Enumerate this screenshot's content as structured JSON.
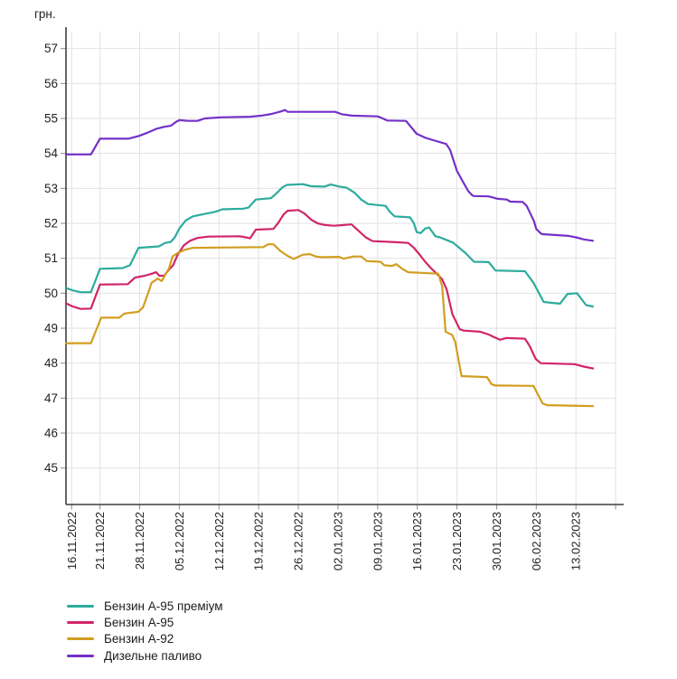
{
  "chart_data": {
    "type": "line",
    "unit_label": "грн.",
    "x_axis": {
      "tick_labels": [
        "16.11.2022",
        "21.11.2022",
        "28.11.2022",
        "05.12.2022",
        "12.12.2022",
        "19.12.2022",
        "26.12.2022",
        "02.01.2023",
        "09.01.2023",
        "16.01.2023",
        "23.01.2023",
        "30.01.2023",
        "06.02.2023",
        "13.02.2023"
      ],
      "tick_days": [
        1,
        6,
        13,
        20,
        27,
        34,
        41,
        48,
        55,
        62,
        69,
        76,
        83,
        90
      ],
      "domain_days": [
        0,
        93
      ],
      "start_date": "15.11.2022",
      "end_date": "16.02.2023"
    },
    "y_axis": {
      "ticks": [
        45,
        46,
        47,
        48,
        49,
        50,
        51,
        52,
        53,
        54,
        55,
        56,
        57
      ],
      "ylim": [
        43.95,
        57.5
      ]
    },
    "grid": true,
    "legend_position": "bottom-left",
    "colors": {
      "grid": "#e2e2e2",
      "axis": "#3f3f3f",
      "tick": "#8a8a8a",
      "text": "#222222"
    },
    "series": [
      {
        "name": "Бензин А-95 преміум",
        "color": "#2CAC9E",
        "points": [
          [
            0,
            50.15
          ],
          [
            1.2,
            50.08
          ],
          [
            2.6,
            50.03
          ],
          [
            4.4,
            50.03
          ],
          [
            6,
            50.7
          ],
          [
            10,
            50.72
          ],
          [
            11.3,
            50.8
          ],
          [
            12.8,
            51.3
          ],
          [
            16.4,
            51.34
          ],
          [
            17.5,
            51.44
          ],
          [
            18.5,
            51.47
          ],
          [
            19.2,
            51.6
          ],
          [
            20,
            51.85
          ],
          [
            21.1,
            52.08
          ],
          [
            22.4,
            52.2
          ],
          [
            24.8,
            52.28
          ],
          [
            26.4,
            52.33
          ],
          [
            27.6,
            52.4
          ],
          [
            31.3,
            52.42
          ],
          [
            32.2,
            52.45
          ],
          [
            33.5,
            52.68
          ],
          [
            36.2,
            52.72
          ],
          [
            37.1,
            52.85
          ],
          [
            38.2,
            53.03
          ],
          [
            39,
            53.1
          ],
          [
            41.8,
            53.12
          ],
          [
            43.3,
            53.06
          ],
          [
            45.6,
            53.05
          ],
          [
            46.7,
            53.11
          ],
          [
            48.3,
            53.05
          ],
          [
            49.5,
            53.02
          ],
          [
            50.9,
            52.88
          ],
          [
            52.1,
            52.68
          ],
          [
            53.3,
            52.55
          ],
          [
            56.4,
            52.5
          ],
          [
            57.2,
            52.32
          ],
          [
            58,
            52.2
          ],
          [
            60.7,
            52.17
          ],
          [
            61.4,
            52.0
          ],
          [
            61.9,
            51.75
          ],
          [
            62.6,
            51.72
          ],
          [
            63.4,
            51.85
          ],
          [
            64.1,
            51.88
          ],
          [
            65.2,
            51.63
          ],
          [
            66,
            51.6
          ],
          [
            68.3,
            51.45
          ],
          [
            70.5,
            51.15
          ],
          [
            72,
            50.9
          ],
          [
            74.6,
            50.89
          ],
          [
            75.8,
            50.65
          ],
          [
            81,
            50.63
          ],
          [
            82.5,
            50.3
          ],
          [
            84.3,
            49.75
          ],
          [
            87.2,
            49.7
          ],
          [
            88.5,
            49.98
          ],
          [
            90.2,
            50.0
          ],
          [
            91.8,
            49.66
          ],
          [
            93,
            49.62
          ]
        ]
      },
      {
        "name": "Бензин А-95",
        "color": "#D12568",
        "points": [
          [
            0,
            49.71
          ],
          [
            1.2,
            49.62
          ],
          [
            2.6,
            49.55
          ],
          [
            4.4,
            49.56
          ],
          [
            6,
            50.25
          ],
          [
            10.9,
            50.26
          ],
          [
            12.2,
            50.45
          ],
          [
            13.9,
            50.5
          ],
          [
            15,
            50.55
          ],
          [
            15.9,
            50.6
          ],
          [
            16.5,
            50.5
          ],
          [
            17.3,
            50.5
          ],
          [
            18.2,
            50.68
          ],
          [
            18.9,
            50.8
          ],
          [
            19.7,
            51.1
          ],
          [
            20.8,
            51.37
          ],
          [
            21.9,
            51.5
          ],
          [
            23.2,
            51.58
          ],
          [
            25.1,
            51.62
          ],
          [
            30.7,
            51.63
          ],
          [
            31.7,
            51.6
          ],
          [
            32.5,
            51.57
          ],
          [
            33.5,
            51.82
          ],
          [
            36.6,
            51.84
          ],
          [
            37.4,
            52.0
          ],
          [
            38.4,
            52.25
          ],
          [
            39.1,
            52.36
          ],
          [
            41,
            52.38
          ],
          [
            42.1,
            52.28
          ],
          [
            43.3,
            52.1
          ],
          [
            44.4,
            52.0
          ],
          [
            45.7,
            51.95
          ],
          [
            47.3,
            51.93
          ],
          [
            50.4,
            51.97
          ],
          [
            51.2,
            51.85
          ],
          [
            52.9,
            51.6
          ],
          [
            54.1,
            51.49
          ],
          [
            58.3,
            51.46
          ],
          [
            60.4,
            51.44
          ],
          [
            61.4,
            51.3
          ],
          [
            62.2,
            51.15
          ],
          [
            63.4,
            50.9
          ],
          [
            64.4,
            50.72
          ],
          [
            65.5,
            50.55
          ],
          [
            66.4,
            50.4
          ],
          [
            67.2,
            50.1
          ],
          [
            68.2,
            49.4
          ],
          [
            69.5,
            48.97
          ],
          [
            70.2,
            48.93
          ],
          [
            73.1,
            48.9
          ],
          [
            74.6,
            48.82
          ],
          [
            75.5,
            48.75
          ],
          [
            76.6,
            48.67
          ],
          [
            77.7,
            48.72
          ],
          [
            81,
            48.7
          ],
          [
            81.8,
            48.5
          ],
          [
            82.9,
            48.12
          ],
          [
            83.8,
            48.0
          ],
          [
            89.8,
            47.97
          ],
          [
            91.4,
            47.9
          ],
          [
            93,
            47.85
          ]
        ]
      },
      {
        "name": "Бензин А-92",
        "color": "#D29E1F",
        "points": [
          [
            0,
            48.57
          ],
          [
            4.4,
            48.57
          ],
          [
            6.2,
            49.3
          ],
          [
            9.4,
            49.3
          ],
          [
            10.3,
            49.42
          ],
          [
            12.8,
            49.47
          ],
          [
            13.6,
            49.6
          ],
          [
            14.7,
            50.1
          ],
          [
            15.1,
            50.3
          ],
          [
            16.2,
            50.42
          ],
          [
            16.9,
            50.35
          ],
          [
            17.6,
            50.55
          ],
          [
            18.2,
            50.72
          ],
          [
            18.8,
            51.05
          ],
          [
            19.7,
            51.15
          ],
          [
            21.1,
            51.25
          ],
          [
            22.4,
            51.3
          ],
          [
            34.8,
            51.32
          ],
          [
            35.7,
            51.4
          ],
          [
            36.6,
            51.4
          ],
          [
            37.9,
            51.2
          ],
          [
            39.1,
            51.07
          ],
          [
            40.2,
            50.98
          ],
          [
            41.8,
            51.1
          ],
          [
            43,
            51.12
          ],
          [
            44.1,
            51.05
          ],
          [
            45.2,
            51.03
          ],
          [
            48.2,
            51.04
          ],
          [
            49,
            50.99
          ],
          [
            50.7,
            51.05
          ],
          [
            52.1,
            51.05
          ],
          [
            53.1,
            50.92
          ],
          [
            55.5,
            50.9
          ],
          [
            56.2,
            50.8
          ],
          [
            57.5,
            50.78
          ],
          [
            58.3,
            50.83
          ],
          [
            59.5,
            50.68
          ],
          [
            60.4,
            50.6
          ],
          [
            65.7,
            50.56
          ],
          [
            66.4,
            50.2
          ],
          [
            67,
            48.9
          ],
          [
            68.2,
            48.8
          ],
          [
            68.7,
            48.6
          ],
          [
            69.8,
            47.63
          ],
          [
            74.3,
            47.6
          ],
          [
            75.1,
            47.4
          ],
          [
            75.8,
            47.36
          ],
          [
            82.5,
            47.35
          ],
          [
            83.3,
            47.1
          ],
          [
            84.1,
            46.85
          ],
          [
            84.9,
            46.8
          ],
          [
            93,
            46.77
          ]
        ]
      },
      {
        "name": "Дизельне паливо",
        "color": "#7430C9",
        "points": [
          [
            0,
            53.97
          ],
          [
            4.4,
            53.97
          ],
          [
            6,
            54.42
          ],
          [
            11,
            54.42
          ],
          [
            12.9,
            54.5
          ],
          [
            14.2,
            54.58
          ],
          [
            15.9,
            54.7
          ],
          [
            17.3,
            54.76
          ],
          [
            18.5,
            54.79
          ],
          [
            19.4,
            54.9
          ],
          [
            20,
            54.95
          ],
          [
            21.6,
            54.93
          ],
          [
            23.2,
            54.93
          ],
          [
            24.5,
            55.0
          ],
          [
            27.2,
            55.03
          ],
          [
            32.5,
            55.05
          ],
          [
            34.5,
            55.08
          ],
          [
            36.3,
            55.13
          ],
          [
            37.9,
            55.2
          ],
          [
            38.7,
            55.24
          ],
          [
            39.1,
            55.19
          ],
          [
            47.5,
            55.19
          ],
          [
            48.7,
            55.12
          ],
          [
            50.4,
            55.08
          ],
          [
            55,
            55.06
          ],
          [
            55.9,
            55.0
          ],
          [
            56.7,
            54.94
          ],
          [
            60,
            54.93
          ],
          [
            61.9,
            54.56
          ],
          [
            63.4,
            54.45
          ],
          [
            64.8,
            54.38
          ],
          [
            67.1,
            54.27
          ],
          [
            67.8,
            54.1
          ],
          [
            69,
            53.5
          ],
          [
            70.1,
            53.18
          ],
          [
            71,
            52.92
          ],
          [
            71.7,
            52.8
          ],
          [
            72,
            52.78
          ],
          [
            74.6,
            52.77
          ],
          [
            76.2,
            52.7
          ],
          [
            77.8,
            52.68
          ],
          [
            78.4,
            52.62
          ],
          [
            80.6,
            52.61
          ],
          [
            81.3,
            52.5
          ],
          [
            82.6,
            52.06
          ],
          [
            83,
            51.84
          ],
          [
            83.8,
            51.71
          ],
          [
            84.1,
            51.69
          ],
          [
            88.7,
            51.64
          ],
          [
            90,
            51.6
          ],
          [
            91.4,
            51.54
          ],
          [
            93,
            51.5
          ]
        ]
      }
    ]
  }
}
